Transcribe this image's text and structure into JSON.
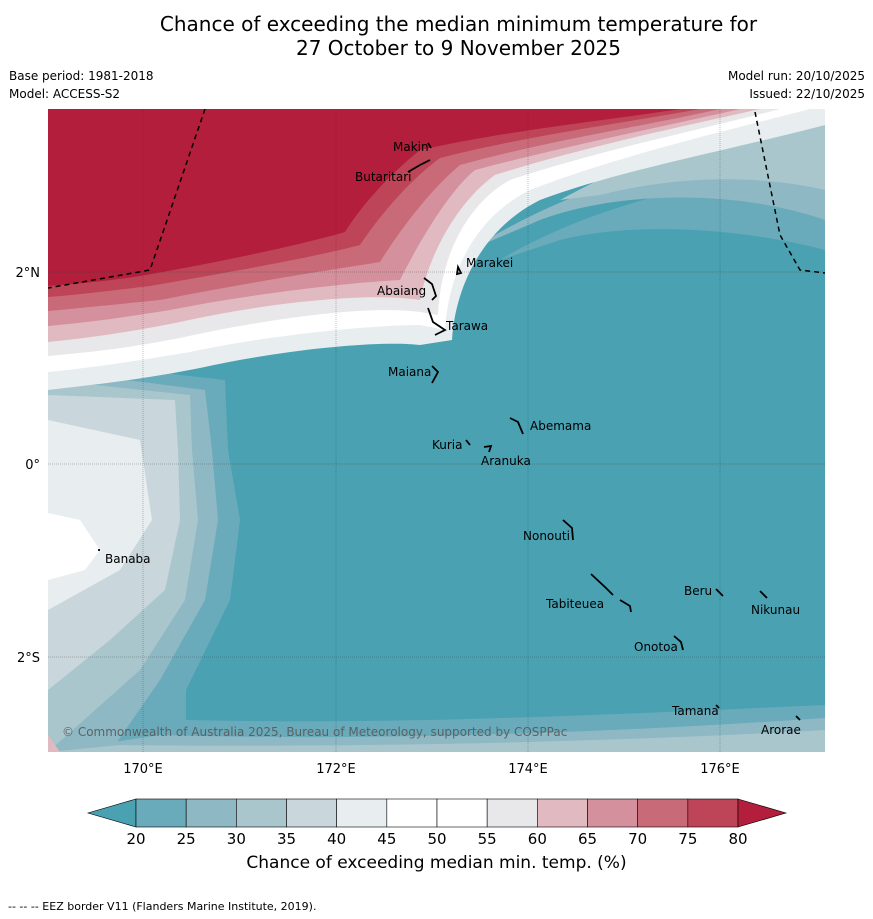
{
  "title_line1": "Chance of exceeding the median minimum temperature for",
  "title_line2": "27 October to 9 November 2025",
  "base_period": "Base period: 1981-2018",
  "model": "Model: ACCESS-S2",
  "model_run": "Model run: 20/10/2025",
  "issued": "Issued: 22/10/2025",
  "copyright": "© Commonwealth of Australia 2025, Bureau of Meteorology, supported by COSPPac",
  "lat_labels": [
    "2°N",
    "0°",
    "2°S"
  ],
  "lon_labels": [
    "170°E",
    "172°E",
    "174°E",
    "176°E"
  ],
  "places": [
    "Makin",
    "Butaritari",
    "Marakei",
    "Abaiang",
    "Tarawa",
    "Maiana",
    "Abemama",
    "Kuria",
    "Aranuka",
    "Nonouti",
    "Banaba",
    "Beru",
    "Nikunau",
    "Tabiteuea",
    "Onotoa",
    "Tamana",
    "Arorae"
  ],
  "colorbar": {
    "ticks": [
      "20",
      "25",
      "30",
      "35",
      "40",
      "45",
      "50",
      "55",
      "60",
      "65",
      "70",
      "75",
      "80"
    ],
    "colors": [
      "#6aabbb",
      "#8db8c4",
      "#a9c6cd",
      "#c9d6db",
      "#e8edf0",
      "#ffffff",
      "#ffffff",
      "#e8e8ea",
      "#e1b9c1",
      "#d4909c",
      "#c96a78",
      "#be4458"
    ],
    "low_color": "#49a1b2",
    "high_color": "#b21e3b",
    "label": "Chance of exceeding median min. temp. (%)"
  },
  "footnote": "--  --  -- EEZ border V11 (Flanders Marine Institute, 2019)."
}
